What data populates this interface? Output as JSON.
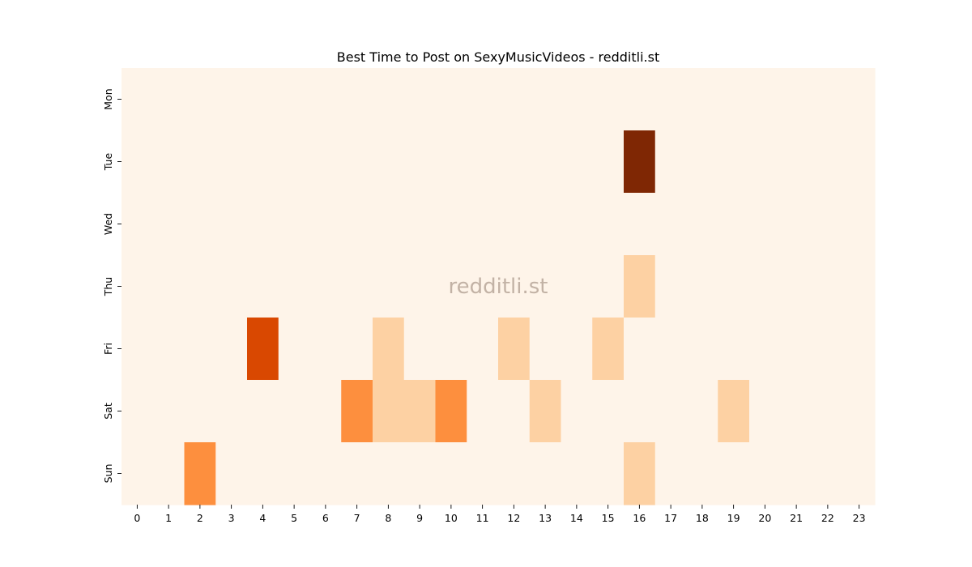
{
  "chart_data": {
    "type": "heatmap",
    "title": "Best Time to Post on SexyMusicVideos - redditli.st",
    "watermark": "redditli.st",
    "xlabel": "",
    "ylabel": "",
    "x_categories": [
      "0",
      "1",
      "2",
      "3",
      "4",
      "5",
      "6",
      "7",
      "8",
      "9",
      "10",
      "11",
      "12",
      "13",
      "14",
      "15",
      "16",
      "17",
      "18",
      "19",
      "20",
      "21",
      "22",
      "23"
    ],
    "y_categories": [
      "Mon",
      "Tue",
      "Wed",
      "Thu",
      "Fri",
      "Sat",
      "Sun"
    ],
    "values": [
      [
        0,
        0,
        0,
        0,
        0,
        0,
        0,
        0,
        0,
        0,
        0,
        0,
        0,
        0,
        0,
        0,
        0,
        0,
        0,
        0,
        0,
        0,
        0,
        0
      ],
      [
        0,
        0,
        0,
        0,
        0,
        0,
        0,
        0,
        0,
        0,
        0,
        0,
        0,
        0,
        0,
        0,
        4,
        0,
        0,
        0,
        0,
        0,
        0,
        0
      ],
      [
        0,
        0,
        0,
        0,
        0,
        0,
        0,
        0,
        0,
        0,
        0,
        0,
        0,
        0,
        0,
        0,
        0,
        0,
        0,
        0,
        0,
        0,
        0,
        0
      ],
      [
        0,
        0,
        0,
        0,
        0,
        0,
        0,
        0,
        0,
        0,
        0,
        0,
        0,
        0,
        0,
        0,
        1,
        0,
        0,
        0,
        0,
        0,
        0,
        0
      ],
      [
        0,
        0,
        0,
        0,
        3,
        0,
        0,
        0,
        1,
        0,
        0,
        0,
        1,
        0,
        0,
        1,
        0,
        0,
        0,
        0,
        0,
        0,
        0,
        0
      ],
      [
        0,
        0,
        0,
        0,
        0,
        0,
        0,
        2,
        1,
        1,
        2,
        0,
        0,
        1,
        0,
        0,
        0,
        0,
        0,
        1,
        0,
        0,
        0,
        0
      ],
      [
        0,
        0,
        2,
        0,
        0,
        0,
        0,
        0,
        0,
        0,
        0,
        0,
        0,
        0,
        0,
        0,
        1,
        0,
        0,
        0,
        0,
        0,
        0,
        0
      ]
    ],
    "colorscale": [
      "#fef4e9",
      "#fdd1a3",
      "#fd8f3e",
      "#d94801",
      "#7f2704"
    ],
    "grid": false,
    "legend": "none"
  }
}
